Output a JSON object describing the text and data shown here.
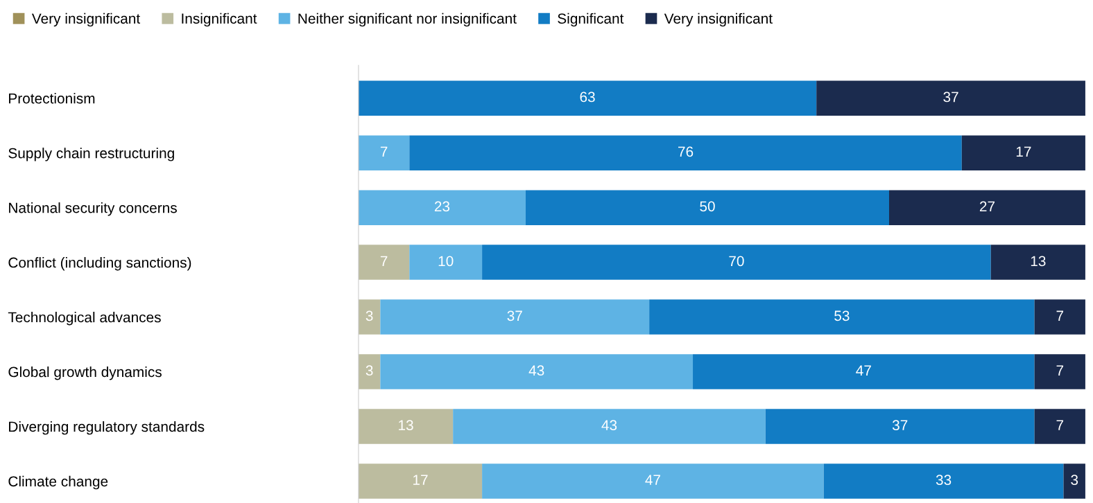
{
  "chart_data": {
    "type": "bar",
    "orientation": "horizontal",
    "stacked": true,
    "data_labels": true,
    "legend": "top left",
    "grid": false,
    "tick_labels": "y",
    "xlim": [
      0,
      100
    ],
    "categories": [
      "Protectionism",
      "Supply chain restructuring",
      "National security concerns",
      "Conflict (including sanctions)",
      "Technological advances",
      "Global growth dynamics",
      "Diverging regulatory standards",
      "Climate change"
    ],
    "series": [
      {
        "name": "Very insignificant",
        "color": "#a0915a",
        "values": [
          null,
          null,
          null,
          null,
          null,
          null,
          null,
          null
        ]
      },
      {
        "name": "Insignificant",
        "color": "#bcbc9f",
        "values": [
          null,
          null,
          null,
          7,
          3,
          3,
          13,
          17
        ]
      },
      {
        "name": "Neither significant nor insignificant",
        "color": "#5eb3e4",
        "values": [
          null,
          7,
          23,
          10,
          37,
          43,
          43,
          47
        ]
      },
      {
        "name": "Significant",
        "color": "#127cc4",
        "values": [
          63,
          76,
          50,
          70,
          53,
          47,
          37,
          33
        ]
      },
      {
        "name": "Very insignificant",
        "color": "#1b2b4e",
        "values": [
          37,
          17,
          27,
          13,
          7,
          7,
          7,
          3
        ]
      }
    ]
  }
}
